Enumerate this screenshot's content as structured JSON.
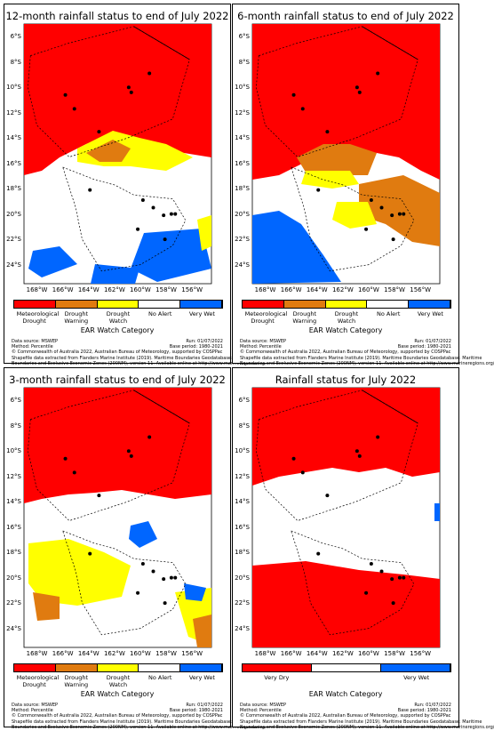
{
  "colors": {
    "meteorological_drought": "#ff0000",
    "drought_warning": "#e07b10",
    "drought_watch": "#ffff00",
    "no_alert": "#ffffff",
    "very_wet": "#0066ff",
    "very_dry": "#ff0000"
  },
  "lat_ticks": [
    "6°S",
    "8°S",
    "10°S",
    "12°S",
    "14°S",
    "16°S",
    "18°S",
    "20°S",
    "22°S",
    "24°S"
  ],
  "lon_ticks": [
    "168°W",
    "166°W",
    "164°W",
    "162°W",
    "160°W",
    "158°W",
    "156°W"
  ],
  "legend_five": [
    "Meteorological Drought",
    "Drought Warning",
    "Drought Watch",
    "No Alert",
    "Very Wet"
  ],
  "legend_two": [
    "Very Dry",
    "Very Wet"
  ],
  "legend_title": "EAR Watch Category",
  "footer": {
    "source": "Data source: MSWEP",
    "method": "Method: Percentile",
    "run": "Run: 01/07/2022",
    "base": "Base period: 1980-2021",
    "copyright": "© Commonwealth of Australia 2022, Australian Bureau of Meteorology, supported by COSPPac",
    "shapefile1": "Shapefile data extracted from Flanders Marine Institute (2019). Maritime Boundaries Geodatabase: Maritime",
    "shapefile2": "Boundaries and Exclusive Economic Zones (200NM), version 11. Available online at http://www.marineregions.org/"
  },
  "panels": [
    {
      "title": "12-month rainfall status to end of July 2022"
    },
    {
      "title": "6-month rainfall status to end of July 2022"
    },
    {
      "title": "3-month rainfall status to end of July 2022"
    },
    {
      "title": "Rainfall status for July 2022"
    }
  ]
}
